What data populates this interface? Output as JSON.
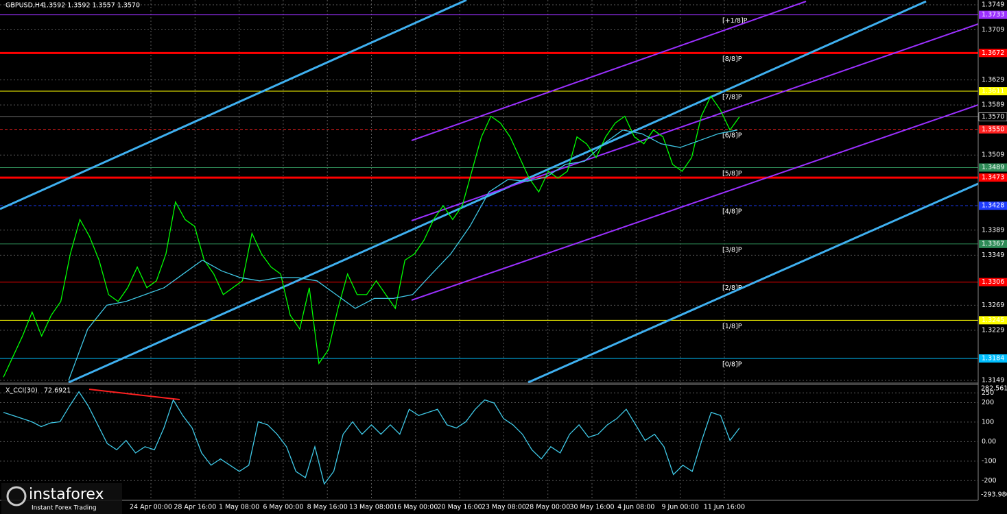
{
  "chart_data": [
    {
      "type": "line",
      "symbol": "GBPUSD,H4",
      "ohlc_text": "1.3592 1.3592 1.3557 1.3570",
      "ylim": [
        1.3149,
        1.3749
      ],
      "yticks": [
        1.3749,
        1.3709,
        1.3629,
        1.3589,
        1.3509,
        1.3389,
        1.3349,
        1.3269,
        1.3229,
        1.3149
      ],
      "grid": true,
      "time_labels": [
        "24 Apr 00:00",
        "28 Apr 16:00",
        "1 May 08:00",
        "6 May 00:00",
        "8 May 16:00",
        "13 May 08:00",
        "16 May 00:00",
        "20 May 16:00",
        "23 May 08:00",
        "28 May 00:00",
        "30 May 16:00",
        "4 Jun 08:00",
        "9 Jun 00:00",
        "11 Jun 16:00"
      ],
      "last_price": {
        "value": 1.357,
        "label": "1.3570"
      },
      "series": [
        {
          "name": "Close",
          "color": "#00ff00",
          "values": [
            1.3154,
            1.3187,
            1.322,
            1.3258,
            1.322,
            1.3253,
            1.3275,
            1.3351,
            1.3406,
            1.3379,
            1.3341,
            1.3286,
            1.3275,
            1.3297,
            1.333,
            1.3297,
            1.3308,
            1.3351,
            1.3434,
            1.3406,
            1.3395,
            1.3341,
            1.3319,
            1.3286,
            1.3297,
            1.3308,
            1.3384,
            1.3351,
            1.333,
            1.3319,
            1.3253,
            1.3231,
            1.3297,
            1.3176,
            1.3198,
            1.3264,
            1.3319,
            1.3286,
            1.3286,
            1.3308,
            1.3286,
            1.3264,
            1.3341,
            1.3351,
            1.3373,
            1.3406,
            1.3428,
            1.3406,
            1.3428,
            1.3483,
            1.3538,
            1.3571,
            1.356,
            1.3538,
            1.3505,
            1.3472,
            1.345,
            1.3483,
            1.3472,
            1.3483,
            1.3538,
            1.3527,
            1.3505,
            1.3538,
            1.356,
            1.3571,
            1.3538,
            1.3527,
            1.3549,
            1.3538,
            1.3494,
            1.3483,
            1.3505,
            1.3571,
            1.3603,
            1.3581,
            1.3549,
            1.357
          ]
        },
        {
          "name": "MA",
          "color": "#3fc8e6",
          "values": [
            1.3149,
            1.3231,
            1.3269,
            1.3275,
            1.3286,
            1.3297,
            1.3319,
            1.3341,
            1.3324,
            1.3313,
            1.3308,
            1.3313,
            1.3313,
            1.3308,
            1.3286,
            1.3264,
            1.328,
            1.328,
            1.3286,
            1.3319,
            1.3351,
            1.3395,
            1.345,
            1.347,
            1.3467,
            1.3474,
            1.3494,
            1.3499,
            1.3527,
            1.3549,
            1.3543,
            1.3527,
            1.3521,
            1.3532,
            1.3543,
            1.3549
          ]
        }
      ],
      "levels": [
        {
          "name": "[+1/8]P",
          "value": 1.3733,
          "color": "#9b30ff"
        },
        {
          "name": "[8/8]P",
          "value": 1.3672,
          "color": "#ff0000"
        },
        {
          "name": "[7/8]P",
          "value": 1.3611,
          "color": "#ffff00"
        },
        {
          "name": "[6/8]P",
          "value": 1.355,
          "label": "1.3550",
          "color": "#ff2020"
        },
        {
          "name": "[5/8]P",
          "value": 1.3489,
          "color": "#2e8b57"
        },
        {
          "value": 1.3473,
          "color": "#ff0000"
        },
        {
          "name": "[4/8]P",
          "value": 1.3428,
          "color": "#1e3cff"
        },
        {
          "name": "[3/8]P",
          "value": 1.3367,
          "color": "#2e8b57"
        },
        {
          "name": "[2/8]P",
          "value": 1.3306,
          "color": "#ff0000"
        },
        {
          "name": "[1/8]P",
          "value": 1.3245,
          "color": "#ffff00"
        },
        {
          "name": "[0/8]P",
          "value": 1.3184,
          "color": "#00bfff"
        }
      ]
    },
    {
      "type": "line",
      "name": "X_CCI(30)",
      "current_text": "72.6921",
      "ylim": [
        {
          "value": -293.98,
          "label": "-293.980"
        },
        282.5616
      ],
      "yticks": [
        250,
        200,
        100,
        {
          "value": 0,
          "label": "0.00"
        },
        -100,
        -200
      ],
      "series": [
        {
          "name": "CCI",
          "color": "#3fc8e6",
          "values": [
            150,
            134,
            118,
            102,
            77,
            96,
            102,
            182,
            256,
            182,
            86,
            -10,
            -42,
            6,
            -58,
            -26,
            -42,
            70,
            214,
            134,
            70,
            -58,
            -121,
            -89,
            -121,
            -153,
            -121,
            102,
            86,
            38,
            -26,
            -153,
            -185,
            -26,
            -217,
            -153,
            38,
            102,
            38,
            86,
            38,
            86,
            38,
            166,
            134,
            150,
            166,
            86,
            70,
            102,
            166,
            214,
            198,
            118,
            86,
            38,
            -42,
            -89,
            -26,
            -58,
            38,
            86,
            22,
            38,
            86,
            118,
            166,
            86,
            6,
            38,
            -26,
            -169,
            -121,
            -153,
            6,
            150,
            134,
            6,
            70
          ]
        }
      ]
    }
  ],
  "logo": {
    "brand": "instaforex",
    "tagline": "Instant Forex Trading"
  }
}
